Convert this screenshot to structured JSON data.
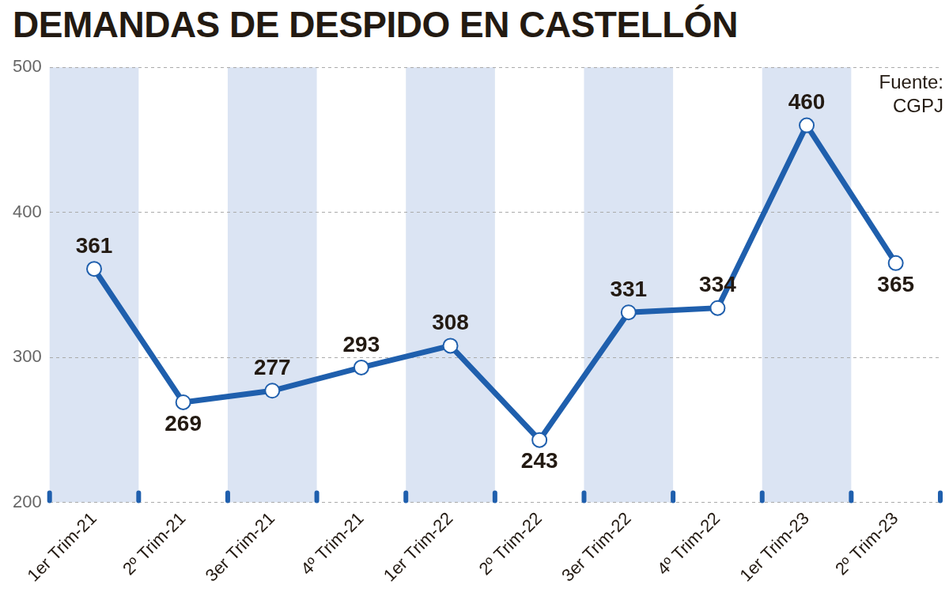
{
  "chart_data": {
    "type": "line",
    "title": "DEMANDAS DE DESPIDO EN CASTELLÓN",
    "annotations": [
      "Fuente: CGPJ"
    ],
    "categories": [
      "1er Trim-21",
      "2º Trim-21",
      "3er Trim-21",
      "4º Trim-21",
      "1er Trim-22",
      "2º Trim-22",
      "3er Trim-22",
      "4º Trim-22",
      "1er Trim-23",
      "2º Trim-23"
    ],
    "values": [
      361,
      269,
      277,
      293,
      308,
      243,
      331,
      334,
      460,
      365
    ],
    "color": "#1f5fad",
    "marker": "circle",
    "ylim": [
      200,
      500
    ],
    "yticks": [
      200,
      300,
      400,
      500
    ],
    "grid": true,
    "data_labels": true
  }
}
